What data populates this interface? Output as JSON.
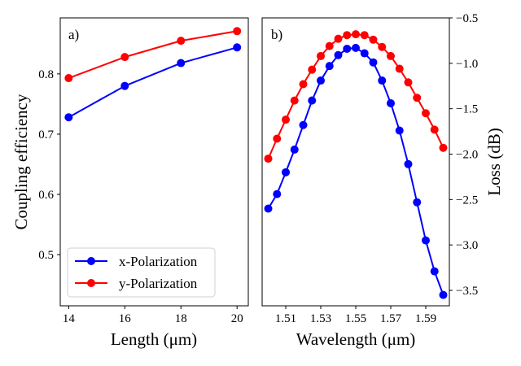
{
  "chart_data": [
    {
      "panel": "a)",
      "type": "line",
      "xlabel": "Length (μm)",
      "ylabel": "Coupling efficiency",
      "xlim": [
        13.7,
        20.4
      ],
      "ylim": [
        0.415,
        0.893
      ],
      "xticks": [
        14,
        16,
        18,
        20
      ],
      "xtick_labels": [
        "14",
        "16",
        "18",
        "20"
      ],
      "yticks": [
        0.5,
        0.6,
        0.7,
        0.8
      ],
      "ytick_labels": [
        "0.5",
        "0.6",
        "0.7",
        "0.8"
      ],
      "x": [
        14,
        16,
        18,
        20
      ],
      "series": [
        {
          "name": "x-Polarization",
          "color": "#0000ff",
          "values": [
            0.728,
            0.78,
            0.818,
            0.844
          ]
        },
        {
          "name": "y-Polarization",
          "color": "#ff0000",
          "values": [
            0.793,
            0.828,
            0.855,
            0.871
          ]
        }
      ],
      "legend": {
        "position": "lower-left",
        "entries": [
          "x-Polarization",
          "y-Polarization"
        ]
      },
      "grid": false
    },
    {
      "panel": "b)",
      "type": "line",
      "xlabel": "Wavelength (μm)",
      "ylabel": "Loss (dB)",
      "ylabel_side": "right",
      "xlim": [
        1.4965,
        1.6035
      ],
      "ylim": [
        -3.67,
        -0.5
      ],
      "xticks": [
        1.51,
        1.53,
        1.55,
        1.57,
        1.59
      ],
      "xtick_labels": [
        "1.51",
        "1.53",
        "1.55",
        "1.57",
        "1.59"
      ],
      "yticks": [
        -3.5,
        -3.0,
        -2.5,
        -2.0,
        -1.5,
        -1.0,
        -0.5
      ],
      "ytick_labels": [
        "−3.5",
        "−3.0",
        "−2.5",
        "−2.0",
        "−1.5",
        "−1.0",
        "−0.5"
      ],
      "x": [
        1.5,
        1.505,
        1.51,
        1.515,
        1.52,
        1.525,
        1.53,
        1.535,
        1.54,
        1.545,
        1.55,
        1.555,
        1.56,
        1.565,
        1.57,
        1.575,
        1.58,
        1.585,
        1.59,
        1.595,
        1.6
      ],
      "series": [
        {
          "name": "x-Polarization",
          "color": "#0000ff",
          "values": [
            -2.6,
            -2.44,
            -2.2,
            -1.95,
            -1.68,
            -1.41,
            -1.19,
            -1.03,
            -0.91,
            -0.84,
            -0.83,
            -0.89,
            -0.99,
            -1.19,
            -1.44,
            -1.74,
            -2.11,
            -2.53,
            -2.95,
            -3.29,
            -3.55
          ]
        },
        {
          "name": "y-Polarization",
          "color": "#ff0000",
          "values": [
            -2.05,
            -1.83,
            -1.62,
            -1.41,
            -1.23,
            -1.07,
            -0.92,
            -0.81,
            -0.73,
            -0.69,
            -0.68,
            -0.69,
            -0.74,
            -0.82,
            -0.92,
            -1.06,
            -1.21,
            -1.38,
            -1.55,
            -1.73,
            -1.93
          ]
        }
      ],
      "grid": false
    }
  ]
}
